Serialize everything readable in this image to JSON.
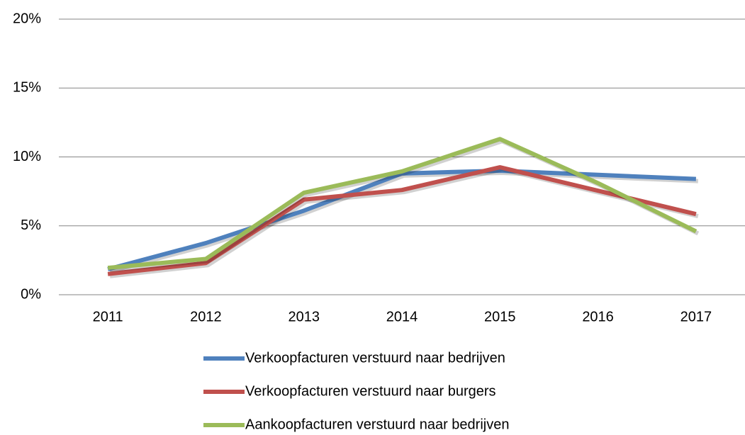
{
  "chart_data": {
    "type": "line",
    "categories": [
      "2011",
      "2012",
      "2013",
      "2014",
      "2015",
      "2016",
      "2017"
    ],
    "series": [
      {
        "name": "Verkoopfacturen verstuurd naar bedrijven",
        "color": "#4f81bd",
        "values": [
          1.85,
          3.75,
          6.1,
          8.8,
          9.0,
          8.7,
          8.4
        ]
      },
      {
        "name": "Verkoopfacturen verstuurd naar burgers",
        "color": "#c0504d",
        "values": [
          1.5,
          2.3,
          6.9,
          7.6,
          9.25,
          7.55,
          5.85
        ]
      },
      {
        "name": "Aankoopfacturen verstuurd naar bedrijven",
        "color": "#9bbb59",
        "values": [
          1.95,
          2.6,
          7.4,
          8.95,
          11.3,
          8.1,
          4.6
        ]
      }
    ],
    "ylim": [
      0,
      20
    ],
    "yticks": [
      {
        "value": 0,
        "label": "0%"
      },
      {
        "value": 5,
        "label": "5%"
      },
      {
        "value": 10,
        "label": "10%"
      },
      {
        "value": 15,
        "label": "15%"
      },
      {
        "value": 20,
        "label": "20%"
      }
    ],
    "grid": true,
    "legend": "bottom"
  }
}
